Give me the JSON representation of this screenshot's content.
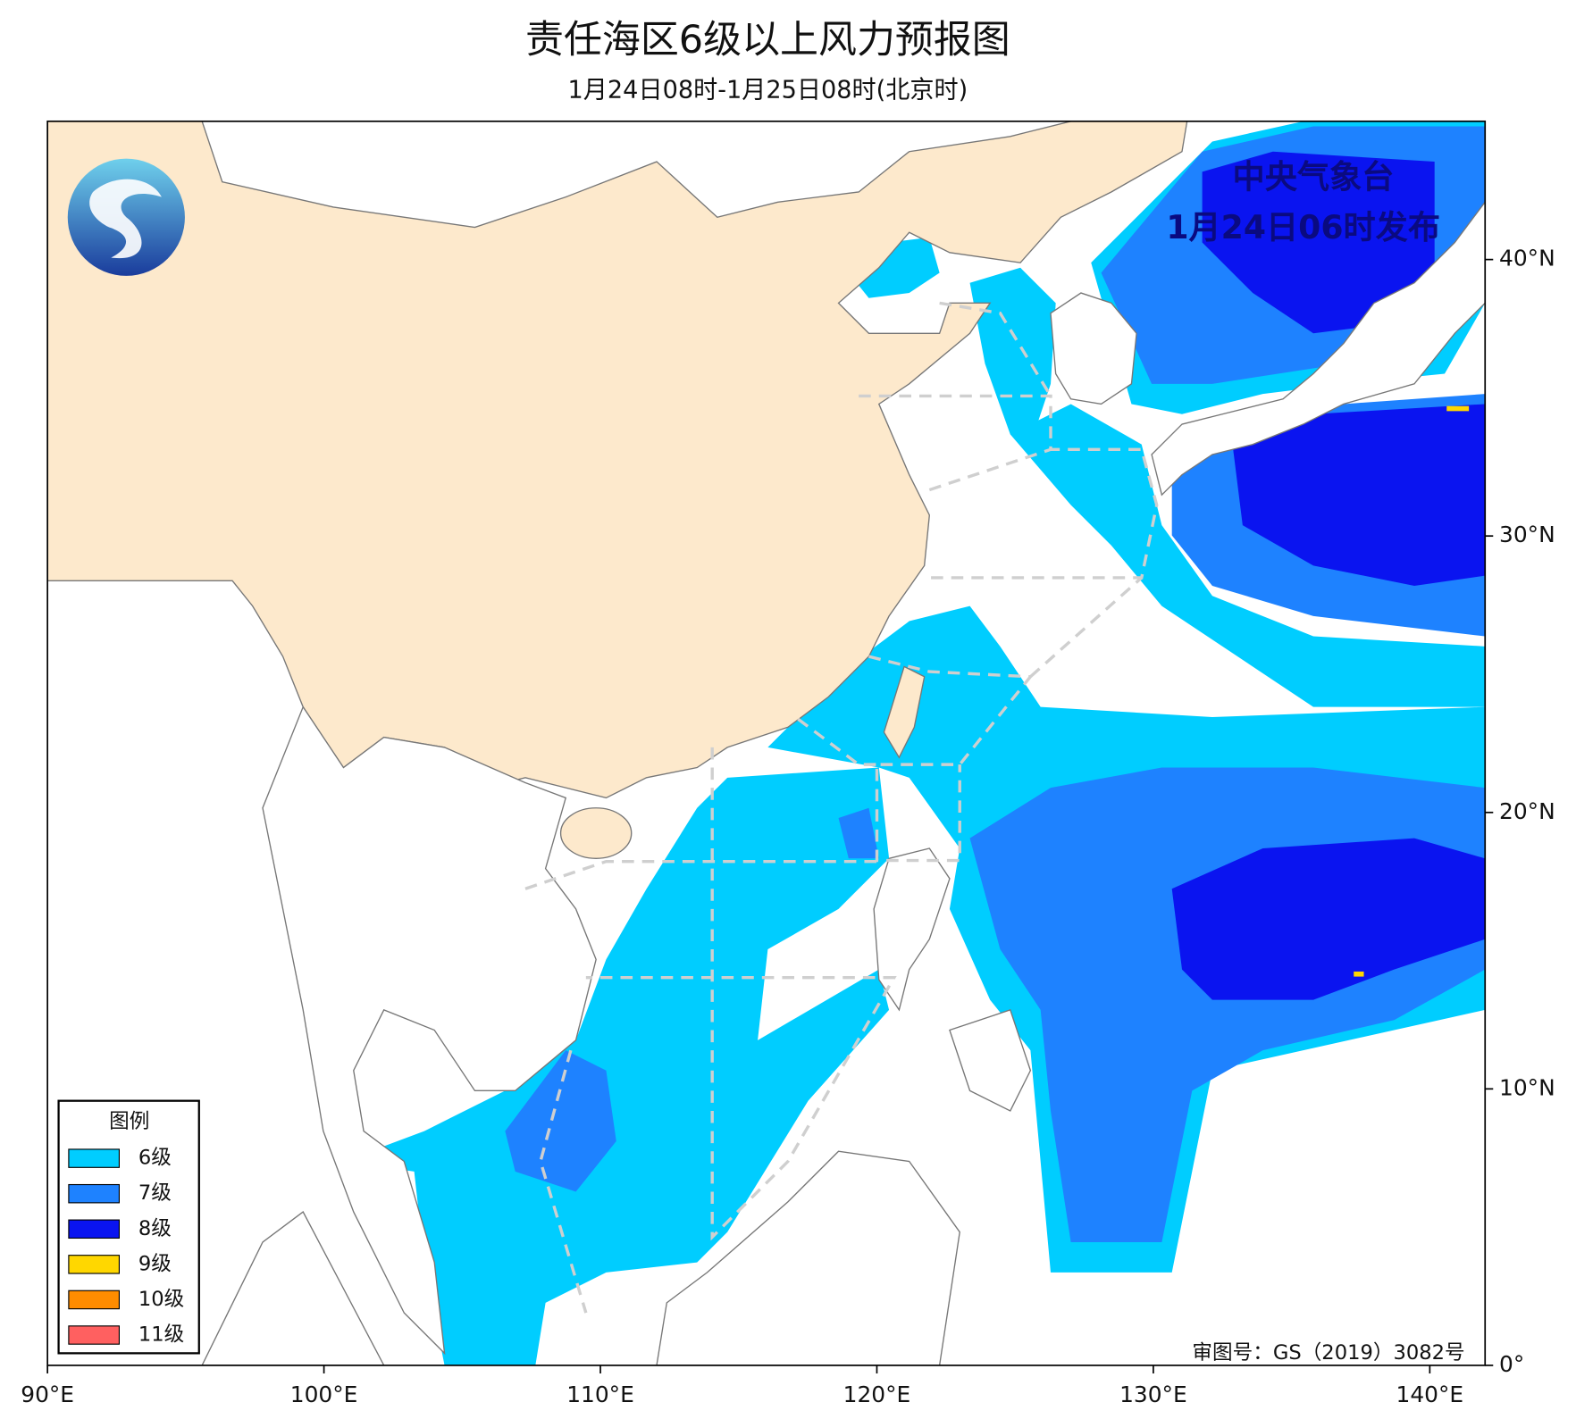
{
  "header": {
    "title": "责任海区6级以上风力预报图",
    "subtitle": "1月24日08时-1月25日08时(北京时)"
  },
  "issuer": {
    "name": "中央气象台",
    "issued": "1月24日06时发布"
  },
  "map": {
    "lonlim": [
      90,
      142
    ],
    "latlim": [
      0,
      45
    ],
    "lon_ticks": [
      {
        "value": 90,
        "label": "90°E"
      },
      {
        "value": 100,
        "label": "100°E"
      },
      {
        "value": 110,
        "label": "110°E"
      },
      {
        "value": 120,
        "label": "120°E"
      },
      {
        "value": 130,
        "label": "130°E"
      },
      {
        "value": 140,
        "label": "140°E"
      }
    ],
    "lat_ticks": [
      {
        "value": 0,
        "label": "0°"
      },
      {
        "value": 10,
        "label": "10°N"
      },
      {
        "value": 20,
        "label": "20°N"
      },
      {
        "value": 30,
        "label": "30°N"
      },
      {
        "value": 40,
        "label": "40°N"
      }
    ]
  },
  "legend": {
    "title": "图例",
    "items": [
      {
        "label": "6级",
        "color": "#00cdff"
      },
      {
        "label": "7级",
        "color": "#1e82ff"
      },
      {
        "label": "8级",
        "color": "#0a14f0"
      },
      {
        "label": "9级",
        "color": "#ffd700"
      },
      {
        "label": "10级",
        "color": "#ff8c00"
      },
      {
        "label": "11级",
        "color": "#ff6060"
      }
    ]
  },
  "approval": "审图号：GS（2019）3082号"
}
